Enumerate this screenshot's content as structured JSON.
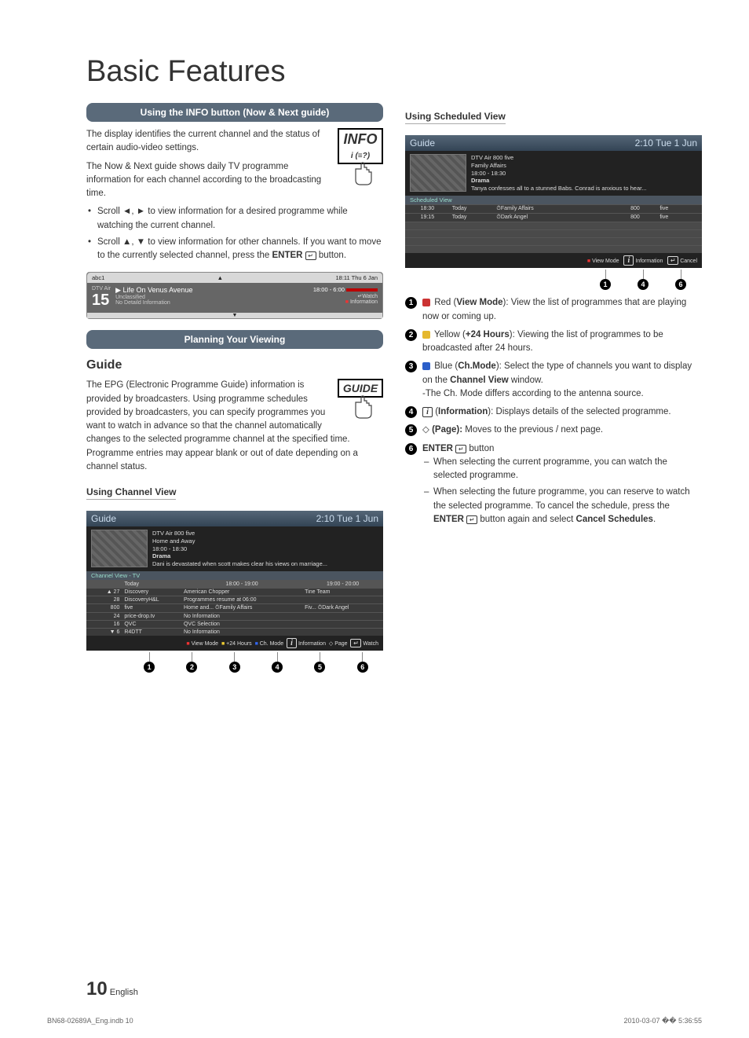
{
  "page": {
    "mainTitle": "Basic Features",
    "pageNumber": "10",
    "pageLang": "English",
    "docRef": "BN68-02689A_Eng.indb   10",
    "docTs": "2010-03-07   �� 5:36:55"
  },
  "section1": {
    "bar": "Using the INFO button (Now & Next guide)",
    "iconLabel": "INFO",
    "para1": "The display identifies the current channel and the status of certain audio-video settings.",
    "para2": "The Now & Next guide shows daily TV programme information for each channel according to the broadcasting time.",
    "bullet1": "Scroll ◄, ► to view information for a desired programme while watching the current channel.",
    "bullet2_a": "Scroll ▲, ▼ to view information for other channels. If you want to move to the currently selected channel, press the ",
    "bullet2_b": " button.",
    "enterWord": "ENTER"
  },
  "infoPanel": {
    "ch": "abc1",
    "time": "18:11 Thu 6 Jan",
    "label": "DTV Air",
    "num": "15",
    "prog": "Life On Venus Avenue",
    "class": "Unclassified",
    "detail": "No Detaild Information",
    "range": "18:00 - 6:00",
    "watch": "Watch",
    "info": "Information"
  },
  "section2": {
    "bar": "Planning Your Viewing",
    "heading": "Guide",
    "iconLabel": "GUIDE",
    "para": "The EPG (Electronic Programme Guide) information is provided by broadcasters. Using programme schedules provided by broadcasters, you can specify programmes you want to watch in advance so that the channel automatically changes to the selected programme channel at the specified time. Programme entries may appear blank or out of date depending on a channel status.",
    "sub": "Using  Channel View"
  },
  "guideShot1": {
    "title": "Guide",
    "clock": "2:10 Tue 1 Jun",
    "meta1": "DTV Air 800 five",
    "meta2": "Home and Away",
    "meta3": "18:00 - 18:30",
    "meta4": "Drama",
    "meta5": "Dani is devastated when scott makes clear his views on marriage...",
    "tab": "Channel View - TV",
    "col_today": "Today",
    "col_t1": "18:00 - 19:00",
    "col_t2": "19:00 - 20:00",
    "rows": [
      {
        "n": "27",
        "ch": "Discovery",
        "c1": "American Chopper",
        "c2": "Tine Team"
      },
      {
        "n": "28",
        "ch": "DiscoveryH&L",
        "c1": "Programmes resume at 06:00",
        "c2": ""
      },
      {
        "n": "800",
        "ch": "five",
        "c1": "Home and...   ⏱Family Affairs",
        "c2": "Fiv...   ⏱Dark Angel"
      },
      {
        "n": "24",
        "ch": "price-drop.tv",
        "c1": "No Information",
        "c2": ""
      },
      {
        "n": "16",
        "ch": "QVC",
        "c1": "QVC Selection",
        "c2": ""
      },
      {
        "n": "6",
        "ch": "R4DTT",
        "c1": "No Information",
        "c2": ""
      }
    ],
    "footer": {
      "a": "View Mode",
      "b": "+24 Hours",
      "c": "Ch. Mode",
      "d": "Information",
      "e": "Page",
      "f": "Watch"
    }
  },
  "rightCol": {
    "sub": "Using Scheduled View"
  },
  "guideShot2": {
    "title": "Guide",
    "clock": "2:10 Tue 1 Jun",
    "meta1": "DTV Air 800 five",
    "meta2": "Family Affairs",
    "meta3": "18:00 - 18:30",
    "meta4": "Drama",
    "meta5": "Tanya confesses all to a stunned Babs. Conrad is anxious to hear...",
    "tab": "Scheduled View",
    "rows": [
      {
        "t": "18:30",
        "d": "Today",
        "p": "⏱Family Affairs",
        "n": "800",
        "c": "five"
      },
      {
        "t": "19:15",
        "d": "Today",
        "p": "⏱Dark Angel",
        "n": "800",
        "c": "five"
      }
    ],
    "footer": {
      "a": "View Mode",
      "d": "Information",
      "f": "Cancel"
    }
  },
  "legend": {
    "l1_pre": "Red (",
    "l1_b": "View Mode",
    "l1_post": "): View the list of programmes that are playing now or coming up.",
    "l2_pre": "Yellow (",
    "l2_b": "+24 Hours",
    "l2_post": "): Viewing the list of programmes to be broadcasted after 24 hours.",
    "l3_pre": "Blue (",
    "l3_b": "Ch.Mode",
    "l3_post1": "): Select the type of channels you want to display on the ",
    "l3_b2": "Channel View",
    "l3_post2": " window.",
    "l3_note": "-The Ch. Mode differs according to the antenna source.",
    "l4_pre": "(",
    "l4_b": "Information",
    "l4_post": "): Displays details of the selected programme.",
    "l5_pre": "(",
    "l5_b": "Page):",
    "l5_post": " Moves to the previous / next page.",
    "l6_b": "ENTER",
    "l6_post": " button",
    "l6_s1": "When selecting the current programme, you can watch the selected programme.",
    "l6_s2a": "When selecting the future programme, you can reserve to watch the selected programme. To cancel the schedule, press the ",
    "l6_s2b": " button again and select ",
    "l6_s2c": "Cancel Schedules",
    "l6_s2d": "."
  }
}
